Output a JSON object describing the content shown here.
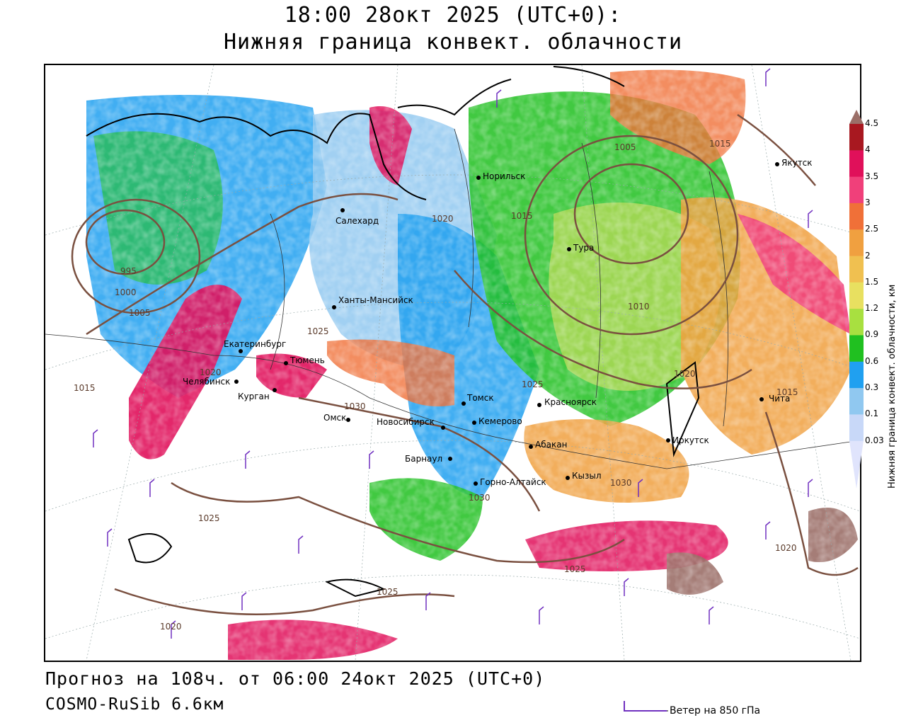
{
  "header": {
    "title_line1": "18:00 28окт 2025 (UTC+0):",
    "title_line2": "Нижняя граница конвект. облачности"
  },
  "footer": {
    "forecast_text": "Прогноз на 108ч. от 06:00 24окт 2025 (UTC+0)",
    "model_text": "COSMO-RuSib 6.6км",
    "wind_legend": "Ветер на 850 гПа"
  },
  "colorbar": {
    "title": "Нижняя граница конвект. облачности, км",
    "ticks": [
      "4.5",
      "4",
      "3.5",
      "3",
      "2.5",
      "2",
      "1.5",
      "1.2",
      "0.9",
      "0.6",
      "0.3",
      "0.1",
      "0.03"
    ],
    "colors": [
      "#9b6f68",
      "#a81820",
      "#e0105a",
      "#f0407a",
      "#f07038",
      "#f0a040",
      "#f0c050",
      "#e8e060",
      "#a8e040",
      "#20c020",
      "#20a0f0",
      "#90c8f0",
      "#c8d8f8",
      "#e0e4fc"
    ]
  },
  "map": {
    "cities": [
      "Якутск",
      "Норильск",
      "Салехард",
      "Тура",
      "Ханты-Мансийск",
      "Екатеринбург",
      "Тюмень",
      "Челябинск",
      "Курган",
      "Томск",
      "Красноярск",
      "Омск",
      "Новосибирск",
      "Кемерово",
      "Абакан",
      "Иркутск",
      "Барнаул",
      "Горно-Алтайск",
      "Кызыл",
      "Чита"
    ],
    "isobars": [
      "995",
      "1000",
      "1005",
      "1010",
      "1015",
      "1015",
      "1020",
      "1025",
      "1030",
      "1030",
      "1025",
      "1030",
      "1025",
      "1025",
      "1020",
      "1020",
      "1005",
      "1010",
      "1015",
      "1020",
      "1015",
      "1020"
    ]
  }
}
